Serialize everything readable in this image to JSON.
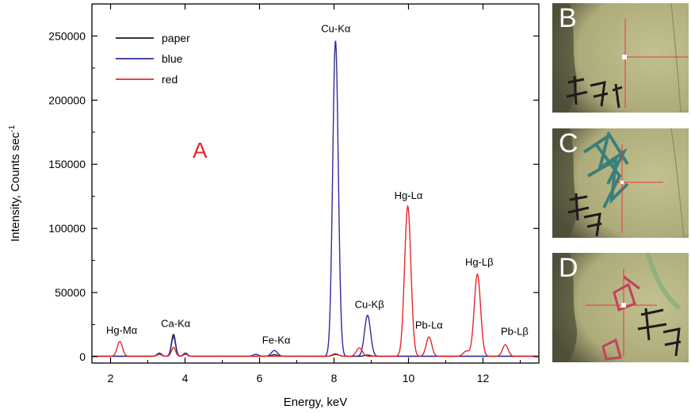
{
  "chart_data": {
    "type": "line",
    "panel_label": "A",
    "panel_label_color": "#e8262b",
    "xlabel": "Energy, keV",
    "ylabel": "Intensity, Counts sec",
    "ylabel_superscript": "-1",
    "xlim": [
      1.5,
      13.5
    ],
    "ylim": [
      -5000,
      275000
    ],
    "xticks": [
      2,
      4,
      6,
      8,
      10,
      12
    ],
    "yticks": [
      0,
      50000,
      100000,
      150000,
      200000,
      250000
    ],
    "xtick_labels": [
      "2",
      "4",
      "6",
      "8",
      "10",
      "12"
    ],
    "ytick_labels": [
      "0",
      "50000",
      "100000",
      "150000",
      "200000",
      "250000"
    ],
    "grid": false,
    "legend_position": "top-left",
    "series": [
      {
        "name": "paper",
        "color": "#1a1a1a",
        "peaks": [
          {
            "x": 3.3,
            "h": 1800,
            "w": 0.06
          },
          {
            "x": 3.69,
            "h": 17000,
            "w": 0.055
          },
          {
            "x": 4.01,
            "h": 2200,
            "w": 0.055
          },
          {
            "x": 6.4,
            "h": 1200,
            "w": 0.08
          },
          {
            "x": 8.05,
            "h": 1500,
            "w": 0.08
          },
          {
            "x": 8.9,
            "h": 900,
            "w": 0.08
          }
        ]
      },
      {
        "name": "blue",
        "color": "#2e2e9e",
        "peaks": [
          {
            "x": 3.31,
            "h": 2500,
            "w": 0.06
          },
          {
            "x": 3.69,
            "h": 15000,
            "w": 0.055
          },
          {
            "x": 4.01,
            "h": 2500,
            "w": 0.055
          },
          {
            "x": 5.9,
            "h": 1500,
            "w": 0.07
          },
          {
            "x": 6.4,
            "h": 4500,
            "w": 0.08
          },
          {
            "x": 8.04,
            "h": 246000,
            "w": 0.075
          },
          {
            "x": 8.9,
            "h": 32000,
            "w": 0.08
          }
        ]
      },
      {
        "name": "red",
        "color": "#e8262b",
        "peaks": [
          {
            "x": 2.25,
            "h": 11500,
            "w": 0.07
          },
          {
            "x": 3.31,
            "h": 1500,
            "w": 0.06
          },
          {
            "x": 3.69,
            "h": 7000,
            "w": 0.055
          },
          {
            "x": 4.01,
            "h": 1500,
            "w": 0.055
          },
          {
            "x": 8.04,
            "h": 2000,
            "w": 0.08
          },
          {
            "x": 8.68,
            "h": 6500,
            "w": 0.08
          },
          {
            "x": 9.98,
            "h": 117000,
            "w": 0.085
          },
          {
            "x": 10.55,
            "h": 15000,
            "w": 0.075
          },
          {
            "x": 11.55,
            "h": 4000,
            "w": 0.08
          },
          {
            "x": 11.85,
            "h": 64000,
            "w": 0.085
          },
          {
            "x": 12.6,
            "h": 9000,
            "w": 0.075
          }
        ]
      }
    ],
    "annotations": [
      {
        "text": "Hg-Mα",
        "x": 2.3,
        "y": 18000
      },
      {
        "text": "Ca-Kα",
        "x": 3.75,
        "y": 23000
      },
      {
        "text": "Fe-Kα",
        "x": 6.45,
        "y": 10000
      },
      {
        "text": "Cu-Kα",
        "x": 8.05,
        "y": 253000
      },
      {
        "text": "Cu-Kβ",
        "x": 8.95,
        "y": 38000
      },
      {
        "text": "Hg-Lα",
        "x": 10.0,
        "y": 123000
      },
      {
        "text": "Pb-Lα",
        "x": 10.55,
        "y": 22000
      },
      {
        "text": "Hg-Lβ",
        "x": 11.9,
        "y": 71000
      },
      {
        "text": "Pb-Lβ",
        "x": 12.85,
        "y": 17000
      }
    ]
  },
  "photos": [
    {
      "label": "B",
      "ink": "black"
    },
    {
      "label": "C",
      "ink": "blue"
    },
    {
      "label": "D",
      "ink": "red"
    }
  ],
  "colors": {
    "paper_bg": "#b9b686",
    "crosshair": "#e8353b",
    "blue_ink": "#2f7a7c",
    "red_ink": "#c44060",
    "black_ink": "#1c1c1c"
  }
}
